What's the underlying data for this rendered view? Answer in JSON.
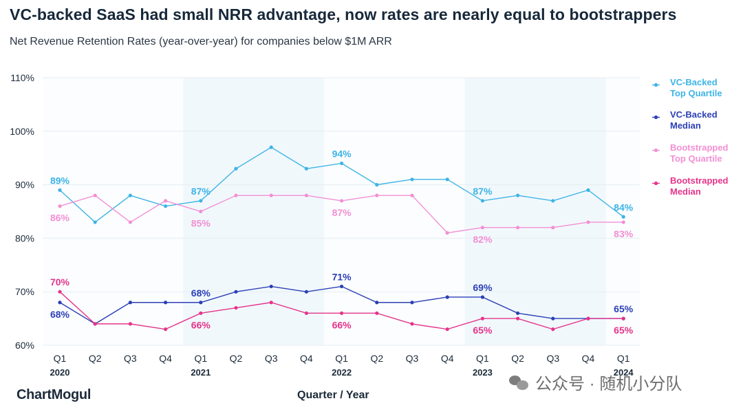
{
  "header": {
    "title": "VC-backed SaaS had small NRR advantage, now rates are nearly equal to bootstrappers",
    "subtitle": "Net Revenue Retention Rates (year-over-year) for companies below $1M ARR"
  },
  "footer": {
    "brand": "ChartMogul",
    "watermark": "公众号 · 随机小分队"
  },
  "chart_data": {
    "type": "line",
    "title": "VC-backed SaaS had small NRR advantage, now rates are nearly equal to bootstrappers",
    "subtitle": "Net Revenue Retention Rates (year-over-year) for companies below $1M ARR",
    "xlabel": "Quarter / Year",
    "ylabel": "",
    "ylim": [
      60,
      110
    ],
    "y_ticks": [
      "110%",
      "100%",
      "90%",
      "80%",
      "70%",
      "60%"
    ],
    "y_tick_values": [
      110,
      100,
      90,
      80,
      70,
      60
    ],
    "categories": [
      "Q1",
      "Q2",
      "Q3",
      "Q4",
      "Q1",
      "Q2",
      "Q3",
      "Q4",
      "Q1",
      "Q2",
      "Q3",
      "Q4",
      "Q1",
      "Q2",
      "Q3",
      "Q4",
      "Q1"
    ],
    "year_labels": [
      "2020",
      "",
      "",
      "",
      "2021",
      "",
      "",
      "",
      "2022",
      "",
      "",
      "",
      "2023",
      "",
      "",
      "",
      "2024"
    ],
    "shaded_years": [
      "2021",
      "2023"
    ],
    "grid": true,
    "legend_position": "right",
    "series": [
      {
        "name": "VC-Backed\nTop Quartile",
        "color": "#3db4e6",
        "values": [
          89,
          83,
          88,
          86,
          87,
          93,
          97,
          93,
          94,
          90,
          91,
          91,
          87,
          88,
          87,
          89,
          84
        ],
        "labels": [
          {
            "i": 0,
            "text": "89%",
            "pos": "above"
          },
          {
            "i": 4,
            "text": "87%",
            "pos": "above"
          },
          {
            "i": 8,
            "text": "94%",
            "pos": "above"
          },
          {
            "i": 12,
            "text": "87%",
            "pos": "above"
          },
          {
            "i": 16,
            "text": "84%",
            "pos": "above"
          }
        ]
      },
      {
        "name": "VC-Backed\nMedian",
        "color": "#2b3fb6",
        "values": [
          68,
          64,
          68,
          68,
          68,
          70,
          71,
          70,
          71,
          68,
          68,
          69,
          69,
          66,
          65,
          65,
          65
        ],
        "labels": [
          {
            "i": 0,
            "text": "68%",
            "pos": "below"
          },
          {
            "i": 4,
            "text": "68%",
            "pos": "above"
          },
          {
            "i": 8,
            "text": "71%",
            "pos": "above"
          },
          {
            "i": 12,
            "text": "69%",
            "pos": "above"
          },
          {
            "i": 16,
            "text": "65%",
            "pos": "above"
          }
        ]
      },
      {
        "name": "Bootstrapped\nTop Quartile",
        "color": "#f38fd4",
        "values": [
          86,
          88,
          83,
          87,
          85,
          88,
          88,
          88,
          87,
          88,
          88,
          81,
          82,
          82,
          82,
          83,
          83
        ],
        "labels": [
          {
            "i": 0,
            "text": "86%",
            "pos": "below"
          },
          {
            "i": 4,
            "text": "85%",
            "pos": "below"
          },
          {
            "i": 8,
            "text": "87%",
            "pos": "below"
          },
          {
            "i": 12,
            "text": "82%",
            "pos": "below"
          },
          {
            "i": 16,
            "text": "83%",
            "pos": "below"
          }
        ]
      },
      {
        "name": "Bootstrapped\nMedian",
        "color": "#e5348a",
        "values": [
          70,
          64,
          64,
          63,
          66,
          67,
          68,
          66,
          66,
          66,
          64,
          63,
          65,
          65,
          63,
          65,
          65
        ],
        "labels": [
          {
            "i": 0,
            "text": "70%",
            "pos": "above"
          },
          {
            "i": 4,
            "text": "66%",
            "pos": "below"
          },
          {
            "i": 8,
            "text": "66%",
            "pos": "below"
          },
          {
            "i": 12,
            "text": "65%",
            "pos": "below"
          },
          {
            "i": 16,
            "text": "65%",
            "pos": "below"
          }
        ]
      }
    ]
  }
}
